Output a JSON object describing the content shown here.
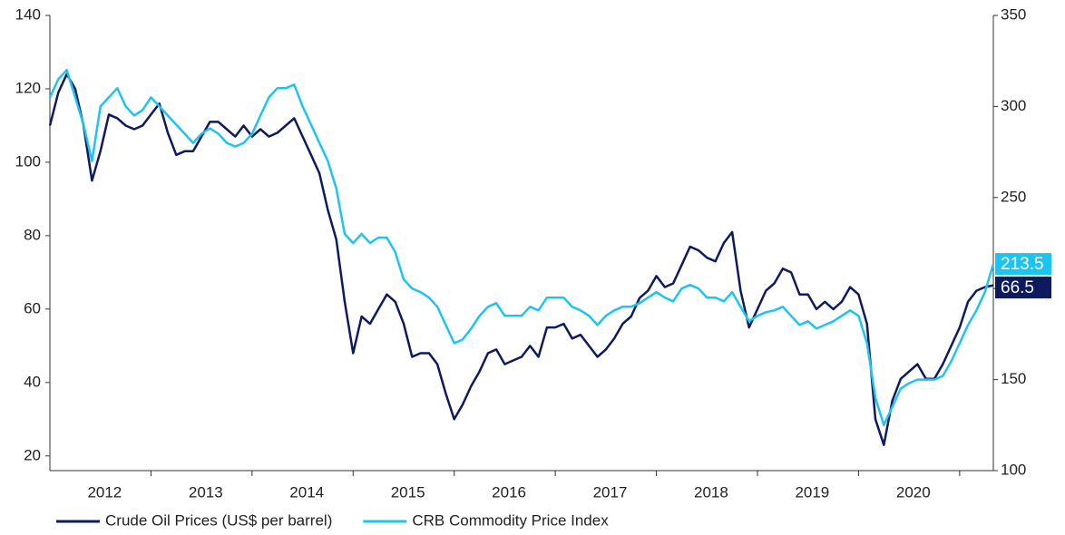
{
  "chart_data": {
    "type": "line",
    "categories": [
      null,
      null,
      null,
      null,
      null,
      null,
      "2012",
      null,
      null,
      null,
      null,
      null,
      null,
      null,
      null,
      null,
      null,
      null,
      "2013",
      null,
      null,
      null,
      null,
      null,
      null,
      null,
      null,
      null,
      null,
      null,
      "2014",
      null,
      null,
      null,
      null,
      null,
      null,
      null,
      null,
      null,
      null,
      null,
      "2015",
      null,
      null,
      null,
      null,
      null,
      null,
      null,
      null,
      null,
      null,
      null,
      "2016",
      null,
      null,
      null,
      null,
      null,
      null,
      null,
      null,
      null,
      null,
      null,
      "2017",
      null,
      null,
      null,
      null,
      null,
      null,
      null,
      null,
      null,
      null,
      null,
      "2018",
      null,
      null,
      null,
      null,
      null,
      null,
      null,
      null,
      null,
      null,
      null,
      "2019",
      null,
      null,
      null,
      null,
      null,
      null,
      null,
      null,
      null,
      null,
      null,
      "2020",
      null,
      null,
      null,
      null,
      null,
      null,
      null,
      null,
      null,
      null
    ],
    "series": [
      {
        "name": "Crude Oil Prices (US$ per barrel)",
        "color": "#0d1a5e",
        "axis": "y",
        "values": [
          110,
          119,
          124,
          120,
          110,
          95,
          103,
          113,
          112,
          110,
          109,
          110,
          113,
          116,
          108,
          102,
          103,
          103,
          107,
          111,
          111,
          109,
          107,
          110,
          107,
          109,
          107,
          108,
          110,
          112,
          107,
          102,
          97,
          87,
          79,
          62,
          48,
          58,
          56,
          60,
          64,
          62,
          56,
          47,
          48,
          48,
          45,
          37,
          30,
          34,
          39,
          43,
          48,
          49,
          45,
          46,
          47,
          50,
          47,
          55,
          55,
          56,
          52,
          53,
          50,
          47,
          49,
          52,
          56,
          58,
          63,
          65,
          69,
          66,
          67,
          72,
          77,
          76,
          74,
          73,
          78,
          81,
          65,
          55,
          60,
          65,
          67,
          71,
          70,
          64,
          64,
          60,
          62,
          60,
          62,
          66,
          64,
          56,
          30,
          23,
          35,
          41,
          43,
          45,
          41,
          41,
          45,
          50,
          55,
          62,
          65,
          66,
          66.5
        ]
      },
      {
        "name": "CRB Commodity Price Index",
        "color": "#1cc4f0",
        "axis": "y2",
        "values": [
          305,
          315,
          320,
          305,
          290,
          270,
          300,
          305,
          310,
          300,
          295,
          298,
          305,
          300,
          295,
          290,
          285,
          280,
          285,
          288,
          285,
          280,
          278,
          280,
          285,
          295,
          305,
          310,
          310,
          312,
          300,
          290,
          280,
          270,
          255,
          230,
          225,
          230,
          225,
          228,
          228,
          220,
          205,
          200,
          198,
          195,
          190,
          180,
          170,
          172,
          178,
          185,
          190,
          192,
          185,
          185,
          185,
          190,
          188,
          195,
          195,
          195,
          190,
          188,
          185,
          180,
          185,
          188,
          190,
          190,
          192,
          195,
          198,
          195,
          193,
          200,
          202,
          200,
          195,
          195,
          193,
          198,
          190,
          182,
          185,
          187,
          188,
          190,
          185,
          180,
          182,
          178,
          180,
          182,
          185,
          188,
          185,
          170,
          140,
          125,
          135,
          145,
          148,
          150,
          150,
          150,
          152,
          160,
          170,
          180,
          188,
          198,
          213.5
        ]
      }
    ],
    "ylim": [
      16,
      140
    ],
    "yticks": [
      20,
      40,
      60,
      80,
      100,
      120,
      140
    ],
    "y2lim": [
      100,
      350
    ],
    "y2ticks": [
      100,
      150,
      200,
      250,
      300,
      350
    ],
    "grid": false
  }
}
